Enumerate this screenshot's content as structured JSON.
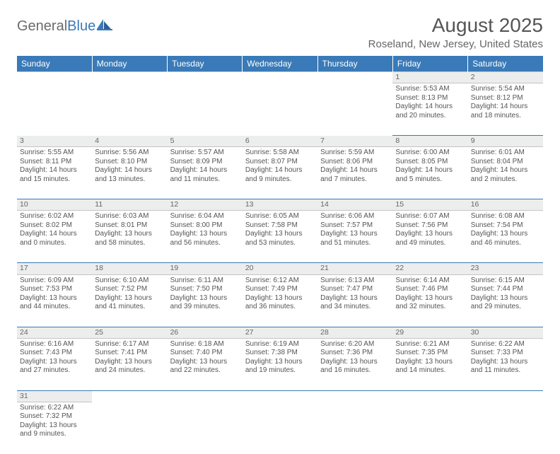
{
  "logo": {
    "textGray": "General",
    "textBlue": "Blue"
  },
  "header": {
    "monthTitle": "August 2025",
    "location": "Roseland, New Jersey, United States"
  },
  "colors": {
    "headerBg": "#3a7ab8",
    "headerText": "#ffffff",
    "dayNumBg": "#eceded",
    "text": "#555555",
    "borderBlue": "#3a7ab8",
    "borderGray": "#c4c4c4"
  },
  "dayHeaders": [
    "Sunday",
    "Monday",
    "Tuesday",
    "Wednesday",
    "Thursday",
    "Friday",
    "Saturday"
  ],
  "weeks": [
    [
      null,
      null,
      null,
      null,
      null,
      {
        "n": "1",
        "sr": "5:53 AM",
        "ss": "8:13 PM",
        "dl": "14 hours and 20 minutes."
      },
      {
        "n": "2",
        "sr": "5:54 AM",
        "ss": "8:12 PM",
        "dl": "14 hours and 18 minutes."
      }
    ],
    [
      {
        "n": "3",
        "sr": "5:55 AM",
        "ss": "8:11 PM",
        "dl": "14 hours and 15 minutes."
      },
      {
        "n": "4",
        "sr": "5:56 AM",
        "ss": "8:10 PM",
        "dl": "14 hours and 13 minutes."
      },
      {
        "n": "5",
        "sr": "5:57 AM",
        "ss": "8:09 PM",
        "dl": "14 hours and 11 minutes."
      },
      {
        "n": "6",
        "sr": "5:58 AM",
        "ss": "8:07 PM",
        "dl": "14 hours and 9 minutes."
      },
      {
        "n": "7",
        "sr": "5:59 AM",
        "ss": "8:06 PM",
        "dl": "14 hours and 7 minutes."
      },
      {
        "n": "8",
        "sr": "6:00 AM",
        "ss": "8:05 PM",
        "dl": "14 hours and 5 minutes."
      },
      {
        "n": "9",
        "sr": "6:01 AM",
        "ss": "8:04 PM",
        "dl": "14 hours and 2 minutes."
      }
    ],
    [
      {
        "n": "10",
        "sr": "6:02 AM",
        "ss": "8:02 PM",
        "dl": "14 hours and 0 minutes."
      },
      {
        "n": "11",
        "sr": "6:03 AM",
        "ss": "8:01 PM",
        "dl": "13 hours and 58 minutes."
      },
      {
        "n": "12",
        "sr": "6:04 AM",
        "ss": "8:00 PM",
        "dl": "13 hours and 56 minutes."
      },
      {
        "n": "13",
        "sr": "6:05 AM",
        "ss": "7:58 PM",
        "dl": "13 hours and 53 minutes."
      },
      {
        "n": "14",
        "sr": "6:06 AM",
        "ss": "7:57 PM",
        "dl": "13 hours and 51 minutes."
      },
      {
        "n": "15",
        "sr": "6:07 AM",
        "ss": "7:56 PM",
        "dl": "13 hours and 49 minutes."
      },
      {
        "n": "16",
        "sr": "6:08 AM",
        "ss": "7:54 PM",
        "dl": "13 hours and 46 minutes."
      }
    ],
    [
      {
        "n": "17",
        "sr": "6:09 AM",
        "ss": "7:53 PM",
        "dl": "13 hours and 44 minutes."
      },
      {
        "n": "18",
        "sr": "6:10 AM",
        "ss": "7:52 PM",
        "dl": "13 hours and 41 minutes."
      },
      {
        "n": "19",
        "sr": "6:11 AM",
        "ss": "7:50 PM",
        "dl": "13 hours and 39 minutes."
      },
      {
        "n": "20",
        "sr": "6:12 AM",
        "ss": "7:49 PM",
        "dl": "13 hours and 36 minutes."
      },
      {
        "n": "21",
        "sr": "6:13 AM",
        "ss": "7:47 PM",
        "dl": "13 hours and 34 minutes."
      },
      {
        "n": "22",
        "sr": "6:14 AM",
        "ss": "7:46 PM",
        "dl": "13 hours and 32 minutes."
      },
      {
        "n": "23",
        "sr": "6:15 AM",
        "ss": "7:44 PM",
        "dl": "13 hours and 29 minutes."
      }
    ],
    [
      {
        "n": "24",
        "sr": "6:16 AM",
        "ss": "7:43 PM",
        "dl": "13 hours and 27 minutes."
      },
      {
        "n": "25",
        "sr": "6:17 AM",
        "ss": "7:41 PM",
        "dl": "13 hours and 24 minutes."
      },
      {
        "n": "26",
        "sr": "6:18 AM",
        "ss": "7:40 PM",
        "dl": "13 hours and 22 minutes."
      },
      {
        "n": "27",
        "sr": "6:19 AM",
        "ss": "7:38 PM",
        "dl": "13 hours and 19 minutes."
      },
      {
        "n": "28",
        "sr": "6:20 AM",
        "ss": "7:36 PM",
        "dl": "13 hours and 16 minutes."
      },
      {
        "n": "29",
        "sr": "6:21 AM",
        "ss": "7:35 PM",
        "dl": "13 hours and 14 minutes."
      },
      {
        "n": "30",
        "sr": "6:22 AM",
        "ss": "7:33 PM",
        "dl": "13 hours and 11 minutes."
      }
    ],
    [
      {
        "n": "31",
        "sr": "6:22 AM",
        "ss": "7:32 PM",
        "dl": "13 hours and 9 minutes."
      },
      null,
      null,
      null,
      null,
      null,
      null
    ]
  ],
  "labels": {
    "sunrise": "Sunrise: ",
    "sunset": "Sunset: ",
    "daylight": "Daylight: "
  }
}
